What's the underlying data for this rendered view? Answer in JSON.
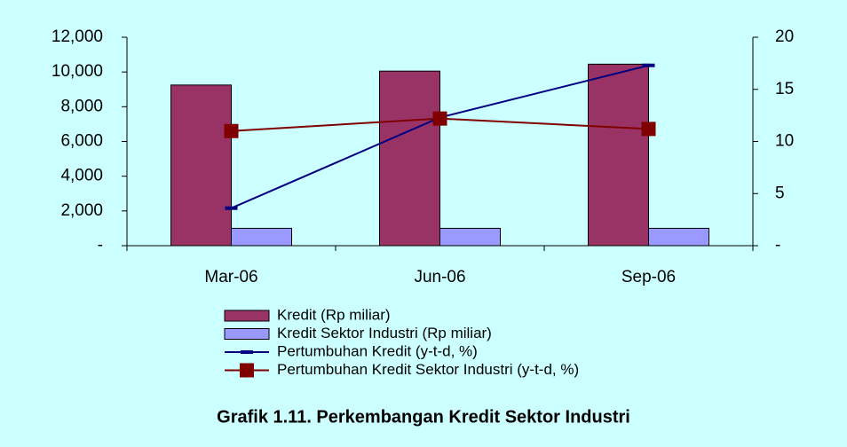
{
  "chart_data": {
    "type": "bar",
    "title": "Grafik 1.11. Perkembangan Kredit Sektor Industri",
    "categories": [
      "Mar-06",
      "Jun-06",
      "Sep-06"
    ],
    "series": [
      {
        "name": "Kredit (Rp miliar)",
        "color": "#993366",
        "type": "bar",
        "values": [
          9250,
          10050,
          10450
        ]
      },
      {
        "name": "Kredit Sektor Industri (Rp miliar)",
        "color": "#9999ff",
        "type": "bar",
        "values": [
          1000,
          1000,
          1000
        ]
      },
      {
        "name": "Pertumbuhan Kredit (y-t-d, %)",
        "color": "#000080",
        "type": "line",
        "marker": "dash",
        "axis": "y2",
        "values": [
          3.6,
          12.3,
          17.3
        ]
      },
      {
        "name": "Pertumbuhan Kredit Sektor Industri (y-t-d, %)",
        "color": "#800000",
        "type": "line",
        "marker": "square",
        "axis": "y2",
        "values": [
          11.0,
          12.2,
          11.2
        ]
      }
    ],
    "ylim": [
      0,
      12000
    ],
    "yticks": [
      {
        "value": 0,
        "label": "-"
      },
      {
        "value": 2000,
        "label": "2,000"
      },
      {
        "value": 4000,
        "label": "4,000"
      },
      {
        "value": 6000,
        "label": "6,000"
      },
      {
        "value": 8000,
        "label": "8,000"
      },
      {
        "value": 10000,
        "label": "10,000"
      },
      {
        "value": 12000,
        "label": "12,000"
      }
    ],
    "y2lim": [
      0,
      20
    ],
    "y2ticks": [
      {
        "value": 0,
        "label": "-"
      },
      5,
      10,
      15,
      20
    ],
    "legend": "bottom"
  }
}
